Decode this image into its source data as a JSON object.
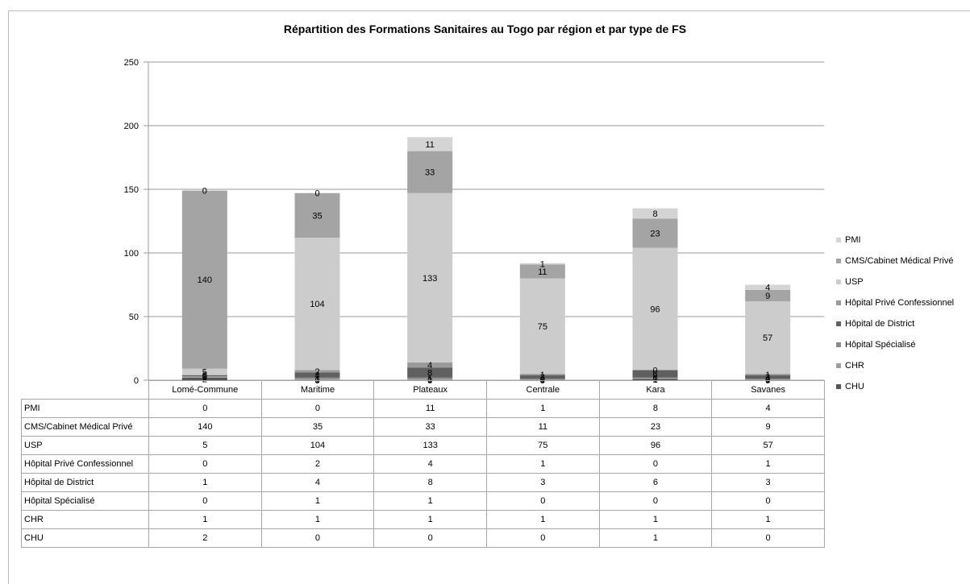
{
  "chart_data": {
    "type": "bar",
    "stacked": true,
    "title": "Répartition des Formations Sanitaires au Togo par région et par type de FS",
    "categories": [
      "Lomé-Commune",
      "Maritime",
      "Plateaux",
      "Centrale",
      "Kara",
      "Savanes"
    ],
    "ylim": [
      0,
      250
    ],
    "yticks": [
      "0",
      "50",
      "100",
      "150",
      "200",
      "250"
    ],
    "ytick_values": [
      0,
      50,
      100,
      150,
      200,
      250
    ],
    "grid": true,
    "legend_position": "right",
    "series": [
      {
        "name": "CHU",
        "color": "#555555",
        "values": [
          2,
          0,
          0,
          0,
          1,
          0
        ]
      },
      {
        "name": "CHR",
        "color": "#9e9e9e",
        "values": [
          1,
          1,
          1,
          1,
          1,
          1
        ]
      },
      {
        "name": "Hôpital Spécialisé",
        "color": "#8c8c8c",
        "values": [
          0,
          1,
          1,
          0,
          0,
          0
        ]
      },
      {
        "name": "Hôpital de District",
        "color": "#606060",
        "values": [
          1,
          4,
          8,
          3,
          6,
          3
        ]
      },
      {
        "name": "Hôpital Privé Confessionnel",
        "color": "#9a9a9a",
        "values": [
          0,
          2,
          4,
          1,
          0,
          1
        ]
      },
      {
        "name": "USP",
        "color": "#cccccc",
        "values": [
          5,
          104,
          133,
          75,
          96,
          57
        ]
      },
      {
        "name": "CMS/Cabinet Médical Privé",
        "color": "#a4a4a4",
        "values": [
          140,
          35,
          33,
          11,
          23,
          9
        ]
      },
      {
        "name": "PMI",
        "color": "#d4d4d4",
        "values": [
          0,
          0,
          11,
          1,
          8,
          4
        ]
      }
    ],
    "table_row_order": [
      "PMI",
      "CMS/Cabinet Médical Privé",
      "USP",
      "Hôpital Privé Confessionnel",
      "Hôpital de District",
      "Hôpital Spécialisé",
      "CHR",
      "CHU"
    ]
  }
}
